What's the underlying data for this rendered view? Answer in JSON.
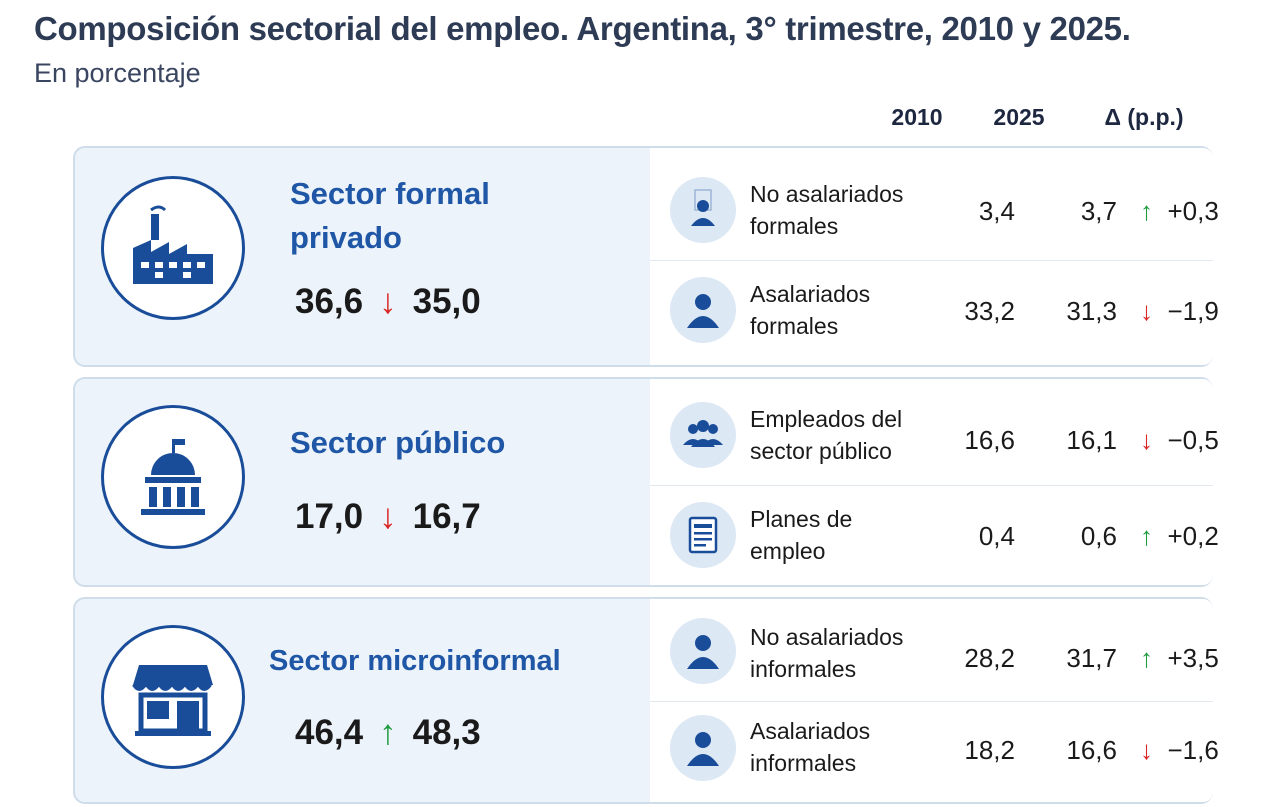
{
  "title": "Composición sectorial del empleo. Argentina, 3° trimestre, 2010 y 2025.",
  "subtitle": "En porcentaje",
  "colors": {
    "accent": "#1f57a6",
    "up": "#1f9a3f",
    "down": "#d92626",
    "panel": "#edf3fa"
  },
  "chart_data": {
    "type": "table",
    "columns": [
      "2010",
      "2025",
      "Δ (p.p.)"
    ],
    "sectors": [
      {
        "name": "Sector formal privado",
        "name_lines": [
          "Sector formal",
          "privado"
        ],
        "icon": "factory-icon",
        "total_2010": "36,6",
        "total_2025": "35,0",
        "trend": "down",
        "rows": [
          {
            "label_lines": [
              "No asalariados",
              "formales"
            ],
            "icon": "person-icon",
            "v2010": "3,4",
            "v2025": "3,7",
            "delta": "+0,3",
            "trend": "up"
          },
          {
            "label_lines": [
              "Asalariados",
              "formales"
            ],
            "icon": "person-icon",
            "v2010": "33,2",
            "v2025": "31,3",
            "delta": "−1,9",
            "trend": "down"
          }
        ]
      },
      {
        "name": "Sector público",
        "name_lines": [
          "Sector público"
        ],
        "icon": "government-building-icon",
        "total_2010": "17,0",
        "total_2025": "16,7",
        "trend": "down",
        "rows": [
          {
            "label_lines": [
              "Empleados del",
              "sector público"
            ],
            "icon": "group-icon",
            "v2010": "16,6",
            "v2025": "16,1",
            "delta": "−0,5",
            "trend": "down"
          },
          {
            "label_lines": [
              "Planes de",
              "empleo"
            ],
            "icon": "document-icon",
            "v2010": "0,4",
            "v2025": "0,6",
            "delta": "+0,2",
            "trend": "up"
          }
        ]
      },
      {
        "name": "Sector microinformal",
        "name_lines": [
          "Sector microinformal"
        ],
        "icon": "shop-icon",
        "total_2010": "46,4",
        "total_2025": "48,3",
        "trend": "up",
        "rows": [
          {
            "label_lines": [
              "No asalariados",
              "informales"
            ],
            "icon": "person-icon",
            "v2010": "28,2",
            "v2025": "31,7",
            "delta": "+3,5",
            "trend": "up"
          },
          {
            "label_lines": [
              "Asalariados",
              "informales"
            ],
            "icon": "person-icon",
            "v2010": "18,2",
            "v2025": "16,6",
            "delta": "−1,6",
            "trend": "down"
          }
        ]
      }
    ]
  }
}
